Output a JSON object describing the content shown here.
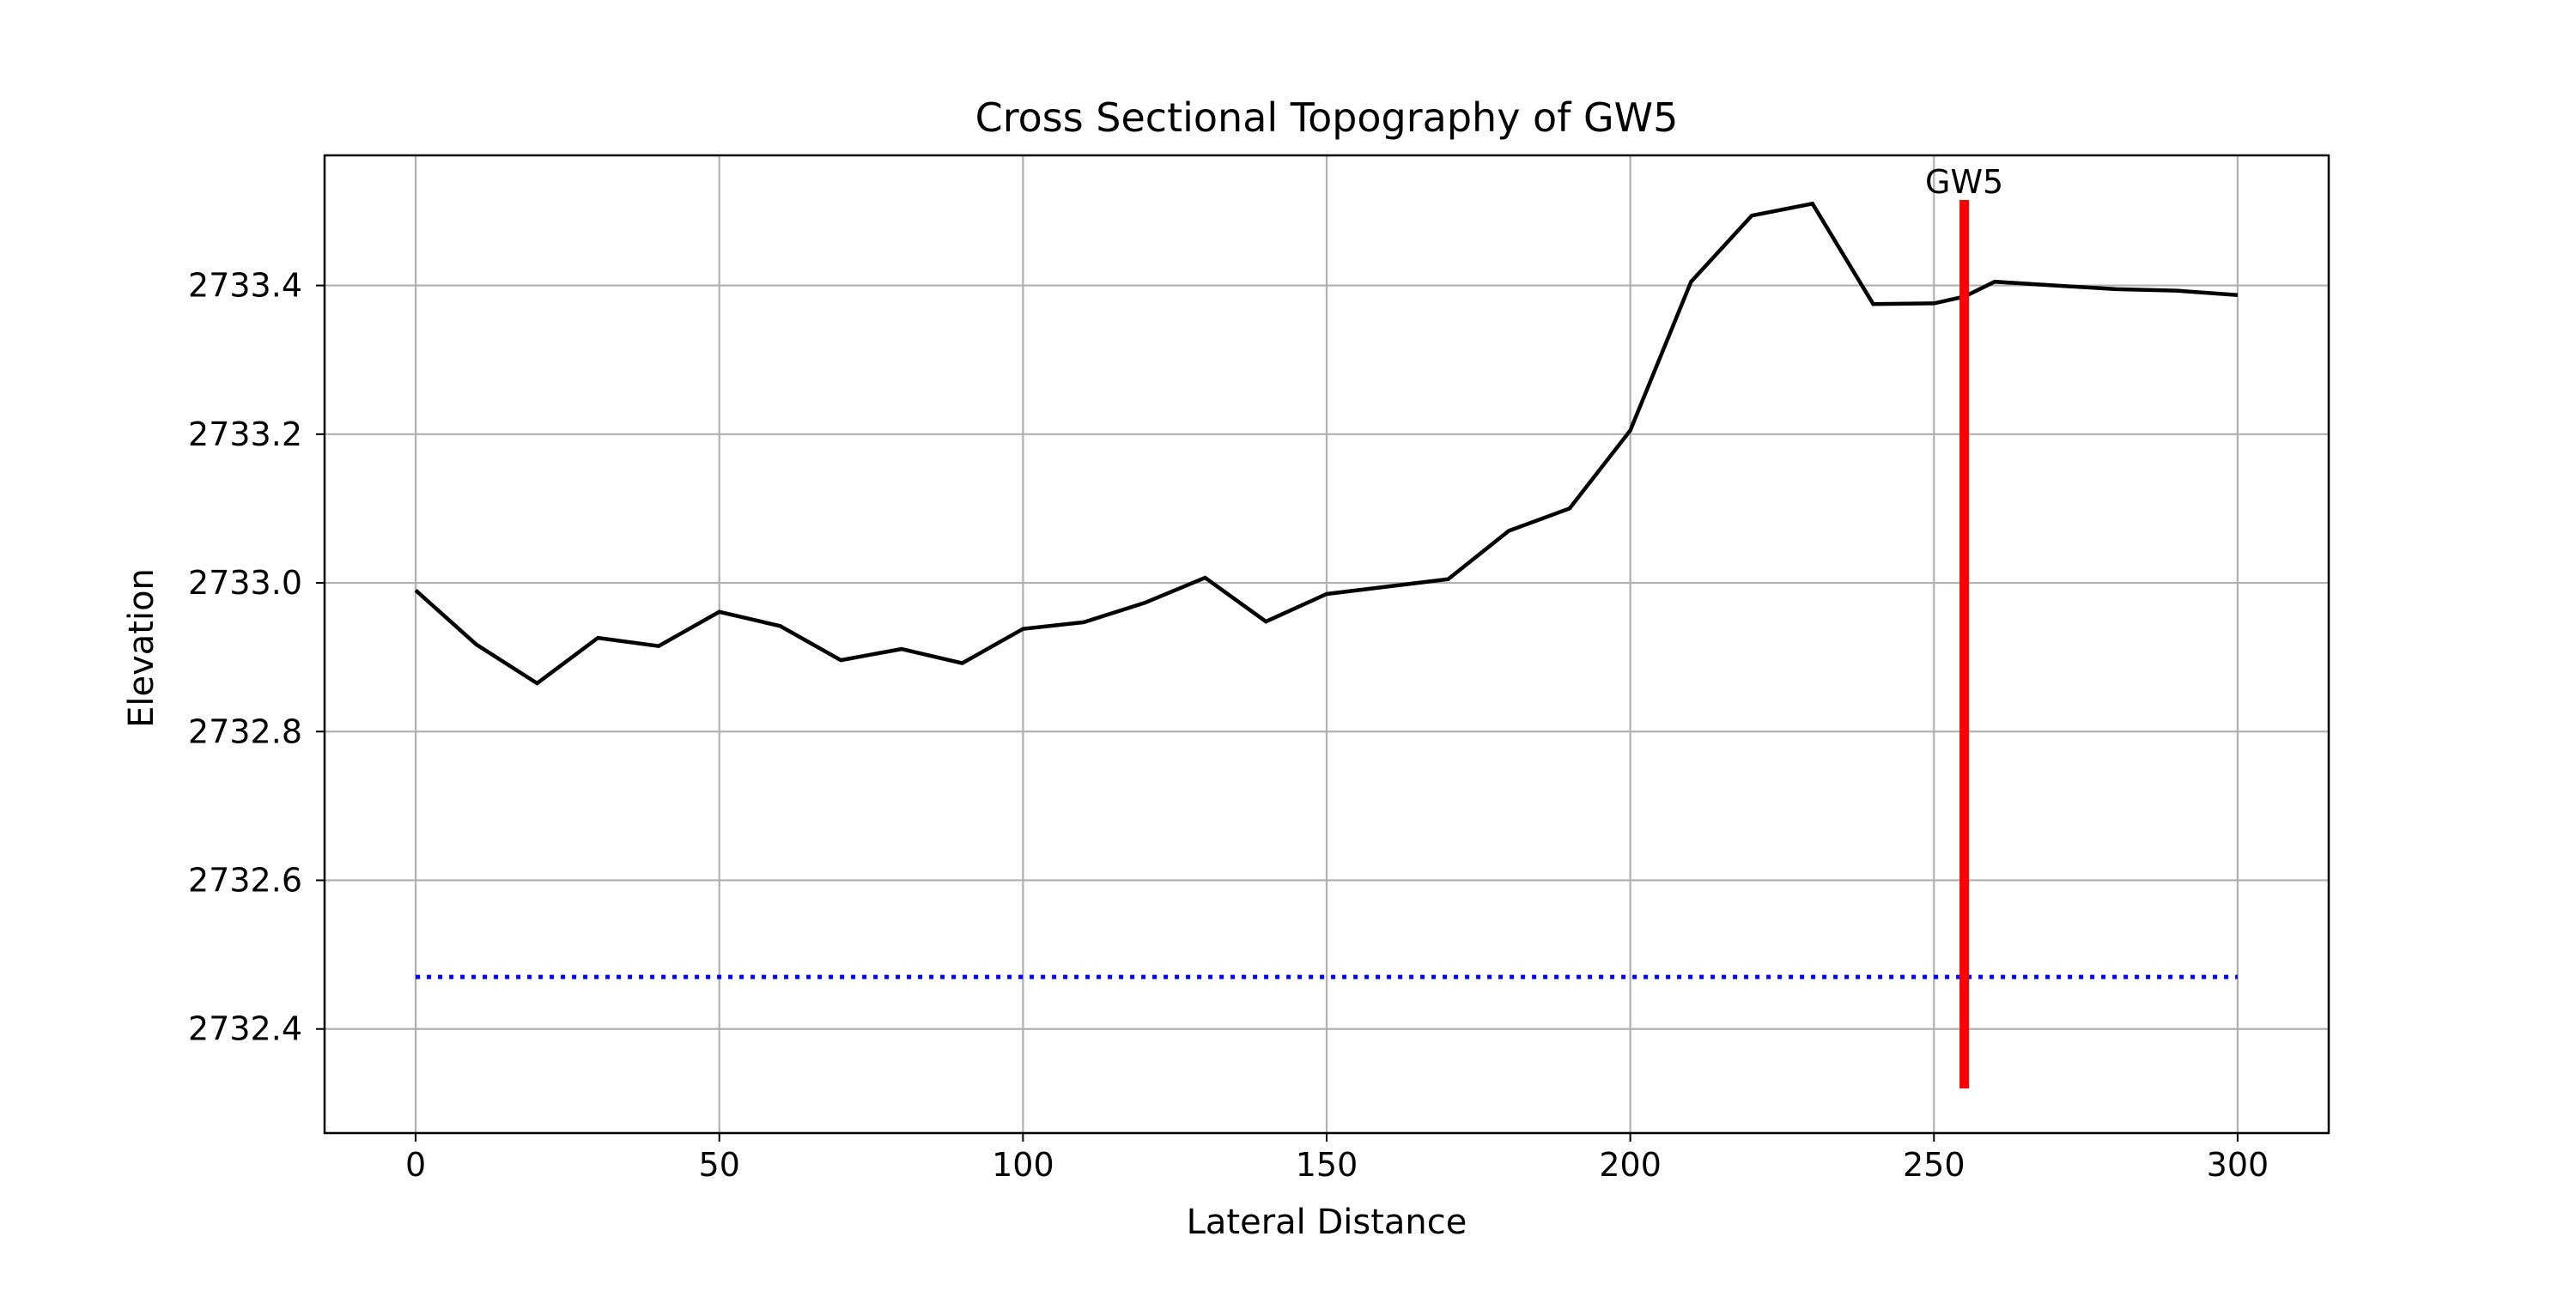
{
  "chart_data": {
    "type": "line",
    "title": "Cross Sectional Topography of GW5",
    "xlabel": "Lateral Distance",
    "ylabel": "Elevation",
    "xlim": [
      -15,
      315
    ],
    "ylim": [
      2732.26,
      2733.575
    ],
    "xticks": [
      0,
      50,
      100,
      150,
      200,
      250,
      300
    ],
    "xtick_labels": [
      "0",
      "50",
      "100",
      "150",
      "200",
      "250",
      "300"
    ],
    "yticks": [
      2732.4,
      2732.6,
      2732.8,
      2733.0,
      2733.2,
      2733.4
    ],
    "ytick_labels": [
      "2732.4",
      "2732.6",
      "2732.8",
      "2733.0",
      "2733.2",
      "2733.4"
    ],
    "grid": true,
    "series": [
      {
        "role": "terrain",
        "color": "#000000",
        "style": "solid",
        "x": [
          0,
          10,
          20,
          30,
          40,
          50,
          60,
          70,
          80,
          90,
          100,
          110,
          120,
          130,
          140,
          150,
          160,
          170,
          180,
          190,
          200,
          210,
          220,
          230,
          240,
          250,
          255,
          260,
          270,
          280,
          290,
          300
        ],
        "y": [
          2732.99,
          2732.917,
          2732.865,
          2732.926,
          2732.915,
          2732.961,
          2732.942,
          2732.896,
          2732.911,
          2732.892,
          2732.938,
          2732.947,
          2732.973,
          2733.007,
          2732.948,
          2732.985,
          2732.995,
          2733.005,
          2733.07,
          2733.1,
          2733.205,
          2733.405,
          2733.494,
          2733.51,
          2733.375,
          2733.376,
          2733.385,
          2733.405,
          2733.4,
          2733.395,
          2733.393,
          2733.387
        ]
      },
      {
        "role": "water-level",
        "color": "#0000ff",
        "style": "dotted",
        "x": [
          0,
          300
        ],
        "y": [
          2732.47,
          2732.47
        ]
      },
      {
        "role": "well-marker",
        "color": "#ff0000",
        "style": "solid-thick",
        "x": [
          255,
          255
        ],
        "y": [
          2732.32,
          2733.515
        ]
      }
    ],
    "annotations": [
      {
        "text": "GW5",
        "x": 255,
        "y": 2733.515
      }
    ]
  }
}
